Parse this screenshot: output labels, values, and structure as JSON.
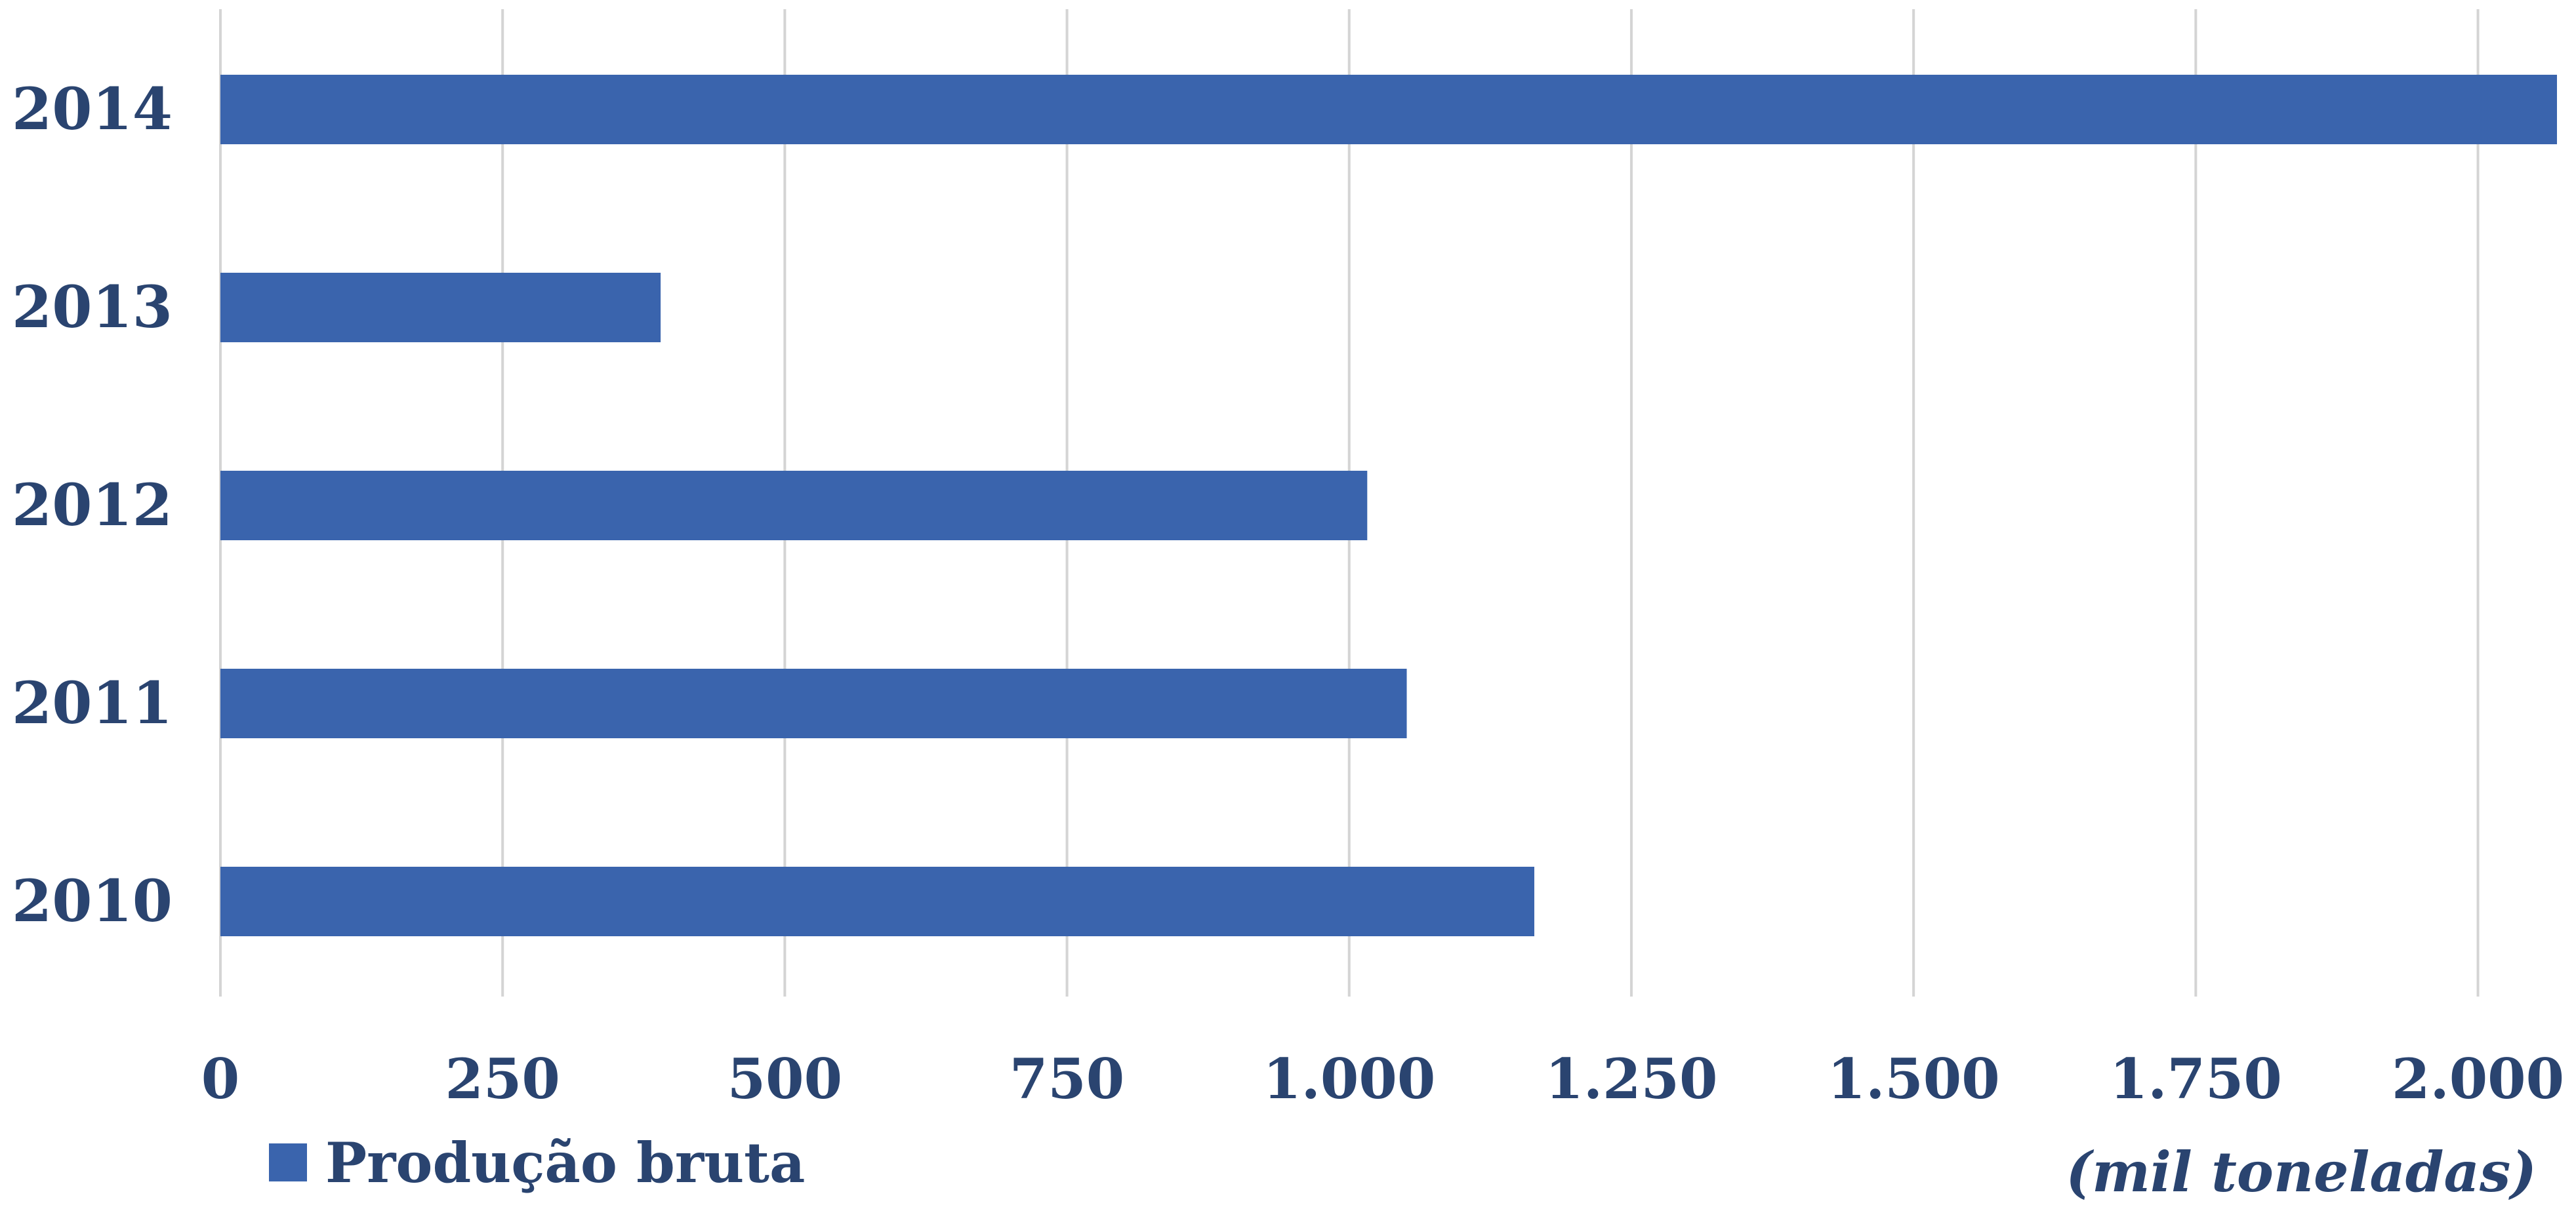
{
  "chart_data": {
    "type": "bar",
    "orientation": "horizontal",
    "categories": [
      "2014",
      "2013",
      "2012",
      "2011",
      "2010"
    ],
    "series": [
      {
        "name": "Produção bruta",
        "values": [
          2070,
          390,
          1016,
          1051,
          1164
        ]
      }
    ],
    "x_ticks": [
      "0",
      "250",
      "500",
      "750",
      "1.000",
      "1.250",
      "1.500",
      "1.750",
      "2.000"
    ],
    "x_tick_values": [
      0,
      250,
      500,
      750,
      1000,
      1250,
      1500,
      1750,
      2000
    ],
    "xlim": [
      0,
      2070
    ],
    "grid": "vertical",
    "legend_position": "bottom-left",
    "unit_note": "(mil toneladas)",
    "colors": {
      "bar": "#3a64ad",
      "grid": "#d4d4d4",
      "text": "#2a4470"
    }
  }
}
